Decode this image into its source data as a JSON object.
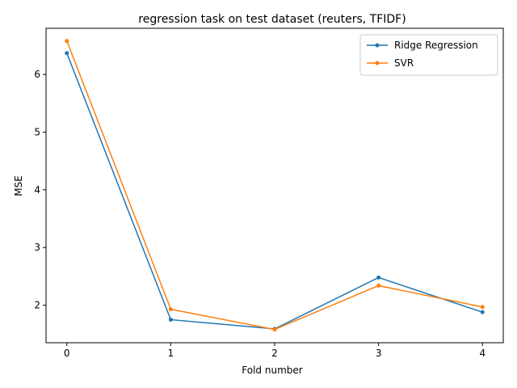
{
  "chart_data": {
    "type": "line",
    "title": "regression task on test dataset (reuters, TFIDF)",
    "xlabel": "Fold number",
    "ylabel": "MSE",
    "x": [
      0,
      1,
      2,
      3,
      4
    ],
    "xticks": [
      "0",
      "1",
      "2",
      "3",
      "4"
    ],
    "yticks": [
      "2",
      "3",
      "4",
      "5",
      "6"
    ],
    "xlim": [
      -0.2,
      4.2
    ],
    "ylim": [
      1.35,
      6.8
    ],
    "grid": false,
    "legend_position": "top-right",
    "series": [
      {
        "name": "Ridge Regression",
        "color": "#1f77b4",
        "values": [
          6.37,
          1.75,
          1.59,
          2.48,
          1.88
        ]
      },
      {
        "name": "SVR",
        "color": "#ff7f0e",
        "values": [
          6.58,
          1.93,
          1.58,
          2.34,
          1.97
        ]
      }
    ]
  }
}
